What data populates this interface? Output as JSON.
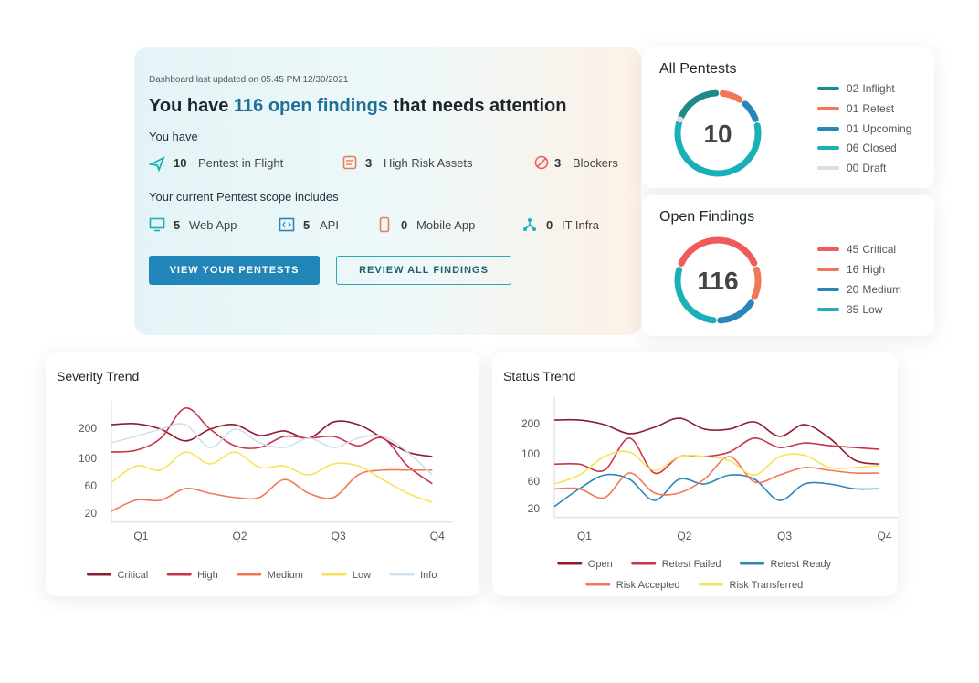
{
  "header": {
    "updated": "Dashboard last updated on 05.45 PM 12/30/2021",
    "headline": {
      "before": "You have ",
      "highlight": "116 open findings",
      "after": " that needs attention"
    },
    "you_have": "You have",
    "stats": [
      {
        "value": 10,
        "label": "Pentest in Flight"
      },
      {
        "value": 3,
        "label": "High Risk Assets"
      },
      {
        "value": 3,
        "label": "Blockers"
      }
    ],
    "scope_heading": "Your current Pentest scope includes",
    "scope": [
      {
        "value": 5,
        "label": "Web App"
      },
      {
        "value": 5,
        "label": "API"
      },
      {
        "value": 0,
        "label": "Mobile App"
      },
      {
        "value": 0,
        "label": "IT Infra"
      }
    ],
    "buttons": [
      "VIEW YOUR PENTESTS",
      "REVIEW ALL FINDINGS"
    ]
  },
  "donuts": [
    {
      "title": "All Pentests",
      "total": 10,
      "items": [
        {
          "value": 2,
          "value_label": "02",
          "label": "Inflight",
          "color": "#1f8a8a"
        },
        {
          "value": 1,
          "value_label": "01",
          "label": "Retest",
          "color": "#f07857"
        },
        {
          "value": 1,
          "value_label": "01",
          "label": "Upcoming",
          "color": "#2a86b8"
        },
        {
          "value": 6,
          "value_label": "06",
          "label": "Closed",
          "color": "#1ab0b8"
        },
        {
          "value": 0,
          "value_label": "00",
          "label": "Draft",
          "color": "#dddddd"
        }
      ]
    },
    {
      "title": "Open Findings",
      "total": 116,
      "items": [
        {
          "value": 45,
          "value_label": "45",
          "label": "Critical",
          "color": "#ef5b5b"
        },
        {
          "value": 16,
          "value_label": "16",
          "label": "High",
          "color": "#f07857"
        },
        {
          "value": 20,
          "value_label": "20",
          "label": "Medium",
          "color": "#2a86b8"
        },
        {
          "value": 35,
          "value_label": "35",
          "label": "Low",
          "color": "#1ab0b8"
        }
      ]
    }
  ],
  "chart_data": [
    {
      "type": "line",
      "title": "Severity Trend",
      "x": [
        0.7,
        0.95,
        1.2,
        1.45,
        1.7,
        1.95,
        2.2,
        2.45,
        2.7,
        2.95,
        3.2,
        3.45,
        3.7,
        3.95
      ],
      "xlim": [
        0.7,
        4.15
      ],
      "xticks": [
        {
          "value": 1,
          "label": "Q1"
        },
        {
          "value": 2,
          "label": "Q2"
        },
        {
          "value": 3,
          "label": "Q3"
        },
        {
          "value": 4,
          "label": "Q4"
        }
      ],
      "ylim": [
        7,
        290
      ],
      "yticks": [
        20,
        60,
        100,
        200
      ],
      "series": [
        {
          "name": "Critical",
          "color": "#8e1b2e",
          "values": [
            212,
            215,
            197,
            158,
            197,
            212,
            176,
            191,
            167,
            221,
            212,
            167,
            121,
            106
          ]
        },
        {
          "name": "High",
          "color": "#c8334a",
          "values": [
            121,
            127,
            167,
            267,
            197,
            142,
            136,
            173,
            167,
            173,
            142,
            167,
            89,
            63
          ]
        },
        {
          "name": "Medium",
          "color": "#f07857",
          "values": [
            23,
            39,
            39,
            56,
            49,
            43,
            43,
            69,
            49,
            43,
            76,
            83,
            83,
            83
          ]
        },
        {
          "name": "Low",
          "color": "#f7e35a",
          "values": [
            65,
            89,
            83,
            121,
            92,
            121,
            87,
            89,
            76,
            92,
            89,
            69,
            49,
            36
          ]
        },
        {
          "name": "Info",
          "color": "#cfe0f0",
          "values": [
            152,
            173,
            197,
            212,
            136,
            197,
            152,
            136,
            167,
            136,
            167,
            173,
            121,
            76
          ]
        }
      ]
    },
    {
      "type": "line",
      "title": "Status Trend",
      "x": [
        0.7,
        0.95,
        1.2,
        1.45,
        1.7,
        1.95,
        2.2,
        2.45,
        2.7,
        2.95,
        3.2,
        3.45,
        3.7,
        3.95
      ],
      "xlim": [
        0.7,
        4.15
      ],
      "xticks": [
        {
          "value": 1,
          "label": "Q1"
        },
        {
          "value": 2,
          "label": "Q2"
        },
        {
          "value": 3,
          "label": "Q3"
        },
        {
          "value": 4,
          "label": "Q4"
        }
      ],
      "ylim": [
        7,
        290
      ],
      "yticks": [
        20,
        60,
        100,
        200
      ],
      "series": [
        {
          "name": "Open",
          "color": "#8e1b2e",
          "values": [
            212,
            212,
            197,
            167,
            188,
            218,
            182,
            182,
            206,
            158,
            197,
            152,
            91,
            85
          ]
        },
        {
          "name": "Retest Failed",
          "color": "#c8334a",
          "values": [
            85,
            85,
            76,
            152,
            72,
            96,
            96,
            106,
            152,
            121,
            136,
            127,
            121,
            115
          ]
        },
        {
          "name": "Retest Ready",
          "color": "#2a86b8",
          "values": [
            23,
            49,
            69,
            63,
            32,
            63,
            56,
            69,
            63,
            32,
            56,
            56,
            49,
            49
          ]
        },
        {
          "name": "Risk Accepted",
          "color": "#f07857",
          "values": [
            49,
            49,
            36,
            72,
            43,
            43,
            63,
            96,
            59,
            69,
            80,
            76,
            72,
            72
          ]
        },
        {
          "name": "Risk Transferred",
          "color": "#f7e35a",
          "values": [
            56,
            69,
            96,
            106,
            76,
            96,
            96,
            90,
            69,
            96,
            98,
            80,
            80,
            83
          ]
        }
      ]
    }
  ]
}
